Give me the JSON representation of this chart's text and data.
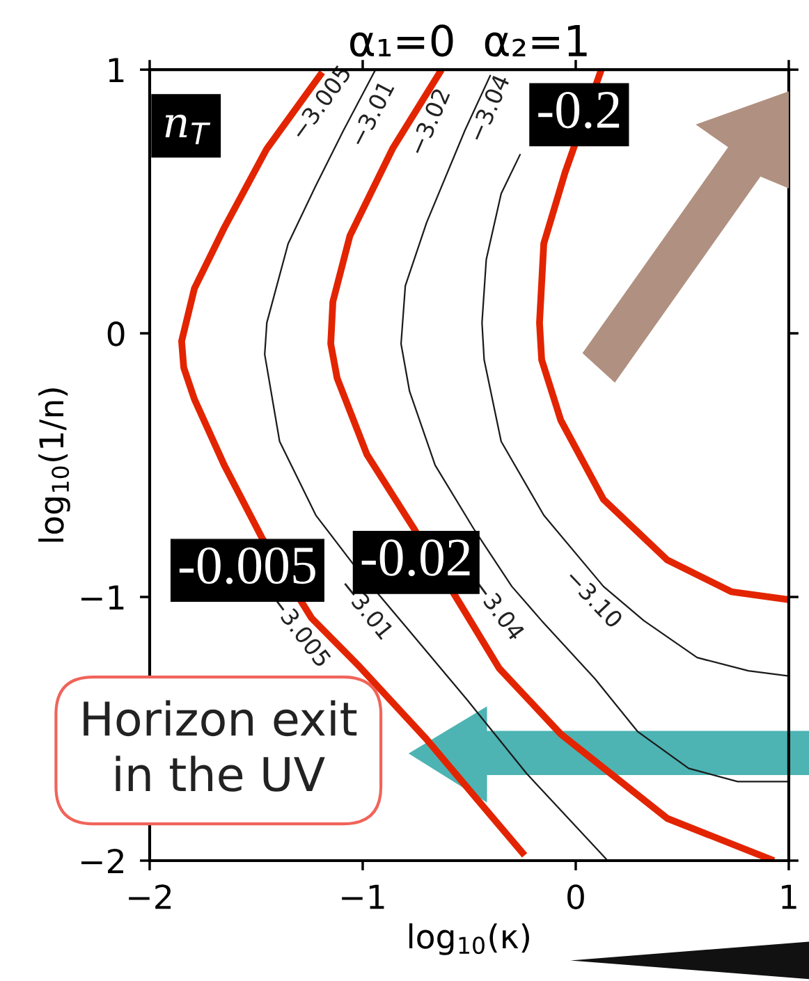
{
  "chart_data": {
    "type": "line",
    "title": "α₁=0  α₂=1",
    "xlabel": "log$_{10}$(κ)",
    "ylabel": "log$_{10}$(1/n)",
    "legend_title": "n$_{T}$",
    "xlim": [
      -2,
      1
    ],
    "ylim": [
      -2,
      1
    ],
    "xticks": [
      {
        "value": -2,
        "label": "−2"
      },
      {
        "value": -1,
        "label": "−1"
      },
      0,
      1
    ],
    "yticks": [
      {
        "value": -2,
        "label": "−2"
      },
      {
        "value": -1,
        "label": "−1"
      },
      0,
      1
    ],
    "grid": false,
    "legend": false,
    "marker": "none",
    "line_style": "solid",
    "series": [
      {
        "color": "#e32400",
        "x": [
          -1.19,
          -1.45,
          -1.65,
          -1.79,
          -1.85,
          -1.84,
          -1.79,
          -1.65,
          -1.47,
          -1.24,
          -1.02,
          -0.7,
          -0.46,
          -0.24
        ],
        "values": [
          0.99,
          0.7,
          0.4,
          0.17,
          -0.03,
          -0.13,
          -0.25,
          -0.5,
          -0.78,
          -1.08,
          -1.26,
          -1.54,
          -1.77,
          -1.98
        ]
      },
      {
        "color": "#e32400",
        "x": [
          -0.63,
          -0.86,
          -1.06,
          -1.14,
          -1.15,
          -1.12,
          -0.98,
          -0.76,
          -0.54,
          -0.36,
          -0.07,
          0.43,
          0.93
        ],
        "values": [
          1.0,
          0.7,
          0.37,
          0.12,
          -0.04,
          -0.17,
          -0.46,
          -0.74,
          -1.03,
          -1.27,
          -1.52,
          -1.84,
          -2.0
        ]
      },
      {
        "color": "#e32400",
        "x": [
          0.12,
          -0.05,
          -0.15,
          -0.17,
          -0.16,
          -0.07,
          0.13,
          0.43,
          0.73,
          1.0
        ],
        "values": [
          1.0,
          0.61,
          0.34,
          0.04,
          -0.1,
          -0.33,
          -0.63,
          -0.86,
          -0.98,
          -1.01
        ]
      },
      {
        "color": "#1a1a1a",
        "x": [
          -0.94,
          -1.09,
          -1.22,
          -1.35,
          -1.45,
          -1.46,
          -1.39,
          -1.22,
          -1.04,
          -0.79,
          -0.51,
          -0.23,
          0.15
        ],
        "values": [
          1.0,
          0.77,
          0.56,
          0.34,
          0.04,
          -0.08,
          -0.41,
          -0.69,
          -0.88,
          -1.12,
          -1.39,
          -1.67,
          -2.0
        ]
      },
      {
        "color": "#1a1a1a",
        "x": [
          -0.4,
          -0.52,
          -0.7,
          -0.8,
          -0.82,
          -0.78,
          -0.66,
          -0.48,
          -0.3,
          -0.16,
          0.09,
          0.29,
          0.53,
          0.76,
          1.0
        ],
        "values": [
          0.98,
          0.77,
          0.42,
          0.18,
          -0.04,
          -0.22,
          -0.5,
          -0.74,
          -0.96,
          -1.09,
          -1.31,
          -1.51,
          -1.65,
          -1.7,
          -1.7
        ]
      },
      {
        "color": "#1a1a1a",
        "x": [
          -0.26,
          -0.35,
          -0.42,
          -0.44,
          -0.43,
          -0.35,
          -0.15,
          0.13,
          0.32,
          0.57,
          0.81,
          1.0
        ],
        "values": [
          0.68,
          0.53,
          0.28,
          0.04,
          -0.1,
          -0.41,
          -0.69,
          -0.96,
          -1.09,
          -1.23,
          -1.28,
          -1.3
        ]
      }
    ],
    "annotations": [
      "-0.005",
      "-0.02",
      "-0.2",
      "−3.005",
      "−3.01",
      "−3.02",
      "−3.04",
      "−3.005",
      "−3.01",
      "−3.04",
      "−3.10",
      "Horizon exit\nin the UV"
    ]
  }
}
